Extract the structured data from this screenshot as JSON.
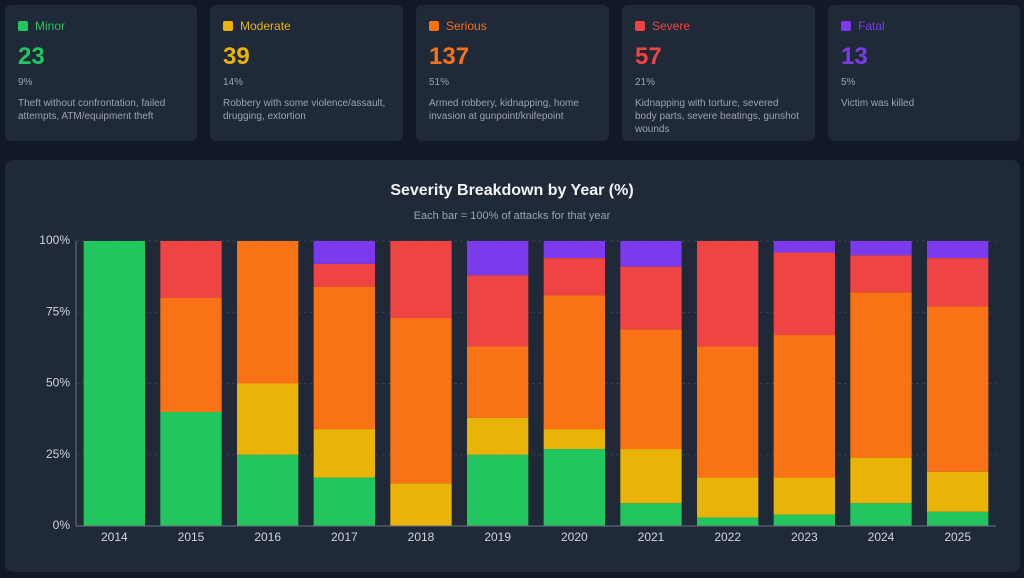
{
  "cards": [
    {
      "count": 23,
      "pct": "9%",
      "desc": "Theft without confrontation, failed attempts, ATM/equipment theft"
    },
    {
      "count": 39,
      "pct": "14%",
      "desc": "Robbery with some violence/assault, drugging, extortion"
    },
    {
      "count": 137,
      "pct": "51%",
      "desc": "Armed robbery, kidnapping, home invasion at gunpoint/knifepoint"
    },
    {
      "count": 57,
      "pct": "21%",
      "desc": "Kidnapping with torture, severed body parts, severe beatings, gunshot wounds"
    },
    {
      "count": 13,
      "pct": "5%",
      "desc": "Victim was killed"
    }
  ],
  "chart_data": {
    "type": "stacked_bar",
    "title": "Severity Breakdown by Year (%)",
    "subtitle": "Each bar = 100% of attacks for that year",
    "categories": [
      "2014",
      "2015",
      "2016",
      "2017",
      "2018",
      "2019",
      "2020",
      "2021",
      "2022",
      "2023",
      "2024",
      "2025"
    ],
    "series": [
      {
        "name": "Minor",
        "color": "#22c55e",
        "values": [
          100,
          40,
          25,
          17,
          0,
          25,
          27,
          8,
          3,
          4,
          8,
          5
        ]
      },
      {
        "name": "Moderate",
        "color": "#eab308",
        "values": [
          0,
          0,
          25,
          17,
          15,
          13,
          7,
          19,
          14,
          13,
          16,
          14
        ]
      },
      {
        "name": "Serious",
        "color": "#f97316",
        "values": [
          0,
          40,
          50,
          50,
          58,
          25,
          47,
          42,
          46,
          50,
          58,
          58
        ]
      },
      {
        "name": "Severe",
        "color": "#ef4444",
        "values": [
          0,
          20,
          0,
          8,
          27,
          25,
          13,
          22,
          37,
          29,
          13,
          17
        ]
      },
      {
        "name": "Fatal",
        "color": "#7c3aed",
        "values": [
          0,
          0,
          0,
          8,
          0,
          12,
          6,
          9,
          0,
          4,
          5,
          6
        ]
      }
    ],
    "ylim": [
      0,
      100
    ],
    "yticks": [
      {
        "value": 0,
        "label": "0%"
      },
      {
        "value": 25,
        "label": "25%"
      },
      {
        "value": 50,
        "label": "50%"
      },
      {
        "value": 75,
        "label": "75%"
      },
      {
        "value": 100,
        "label": "100%"
      }
    ],
    "grid": true
  }
}
